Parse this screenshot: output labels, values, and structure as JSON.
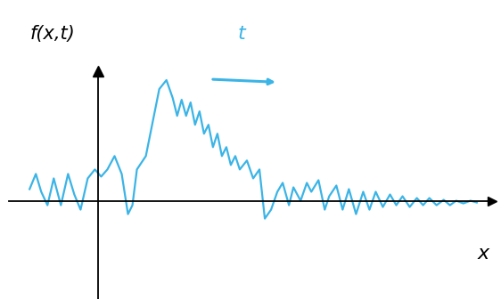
{
  "chart_data": {
    "type": "line",
    "y_label": "f(x,t)",
    "x_label": "x",
    "annotations": [
      "t"
    ],
    "x": [
      -1.54,
      -1.4,
      -1.28,
      -1.14,
      -1.0,
      -0.84,
      -0.68,
      -0.54,
      -0.4,
      -0.24,
      -0.08,
      0.06,
      0.2,
      0.36,
      0.52,
      0.66,
      0.76,
      0.86,
      1.06,
      1.2,
      1.36,
      1.52,
      1.66,
      1.76,
      1.86,
      1.96,
      2.06,
      2.16,
      2.26,
      2.36,
      2.46,
      2.56,
      2.66,
      2.76,
      2.86,
      2.96,
      3.06,
      3.16,
      3.32,
      3.46,
      3.6,
      3.72,
      3.86,
      4.0,
      4.12,
      4.26,
      4.36,
      4.52,
      4.66,
      4.76,
      4.92,
      5.06,
      5.16,
      5.32,
      5.46,
      5.6,
      5.76,
      5.92,
      6.06,
      6.2,
      6.36,
      6.52,
      6.66,
      6.8,
      6.96,
      7.12,
      7.26,
      7.4,
      7.56,
      7.72,
      7.86,
      8.0,
      8.16,
      8.32,
      8.46
    ],
    "series": [
      {
        "color": "#3bb4e6",
        "values": [
          0.26,
          0.6,
          0.2,
          -0.1,
          0.5,
          -0.1,
          0.6,
          0.14,
          -0.2,
          0.5,
          0.7,
          0.54,
          0.7,
          1.0,
          0.6,
          -0.3,
          -0.1,
          0.7,
          1.0,
          1.7,
          2.5,
          2.7,
          2.3,
          1.9,
          2.26,
          1.9,
          2.2,
          1.7,
          2.0,
          1.5,
          1.7,
          1.2,
          1.5,
          1.0,
          1.2,
          0.8,
          1.0,
          0.7,
          0.9,
          0.5,
          0.7,
          -0.4,
          -0.2,
          0.2,
          0.4,
          -0.1,
          0.3,
          0.0,
          0.4,
          0.2,
          0.46,
          -0.2,
          0.1,
          0.34,
          -0.2,
          0.26,
          -0.3,
          0.2,
          -0.2,
          0.2,
          -0.14,
          0.14,
          -0.1,
          0.1,
          -0.14,
          0.06,
          -0.1,
          0.06,
          -0.1,
          0.02,
          -0.1,
          0.0,
          -0.06,
          0.0,
          -0.04
        ]
      }
    ],
    "xlim": [
      -2,
      8.8
    ],
    "ylim": [
      -2.2,
      2.9
    ],
    "xticks": [],
    "yticks": [],
    "tick_labels": false
  }
}
